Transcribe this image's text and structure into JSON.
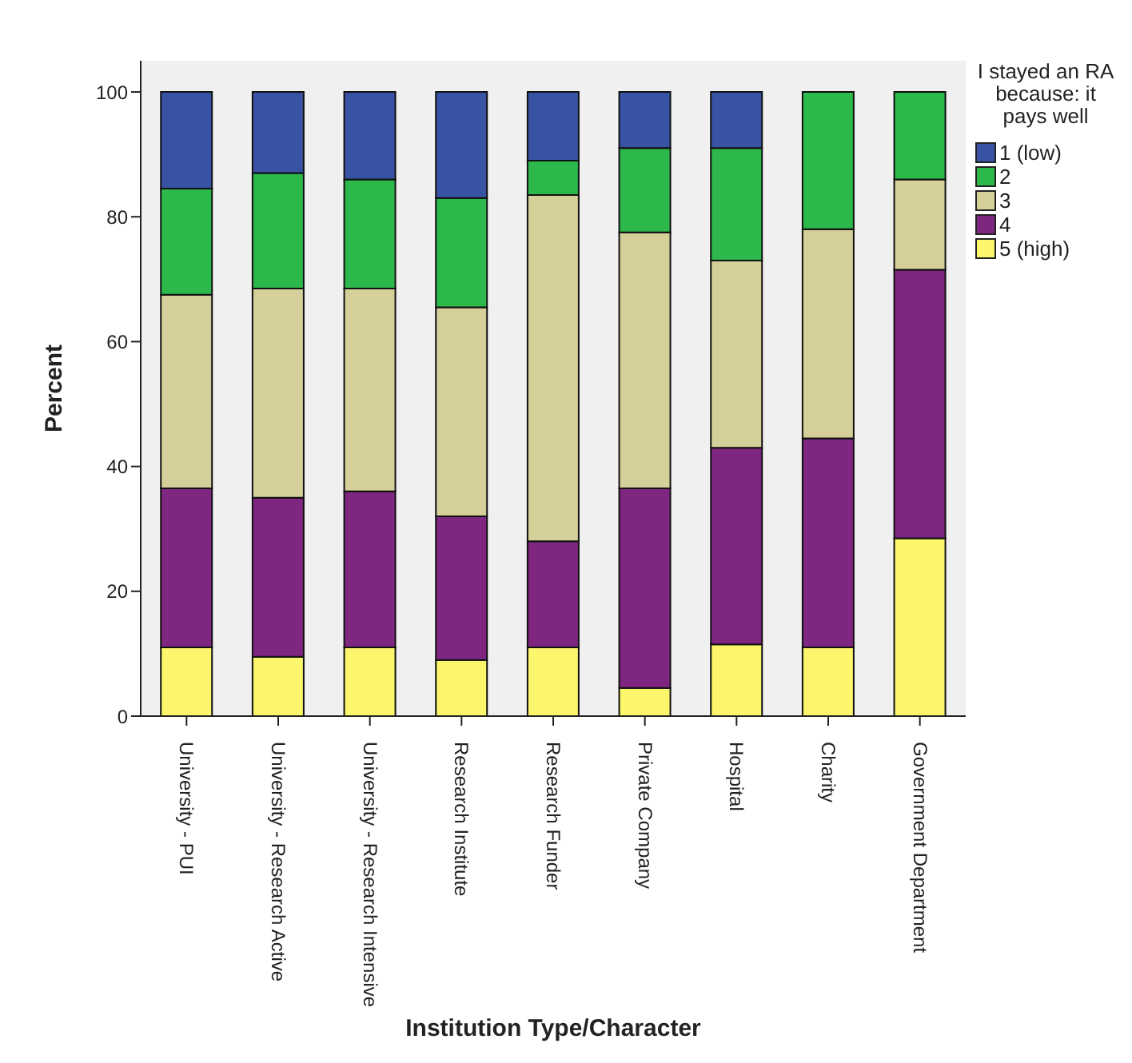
{
  "chart_data": {
    "type": "bar",
    "stacked": true,
    "xlabel": "Institution Type/Character",
    "ylabel": "Percent",
    "legend_title": "I stayed an RA because: it pays well",
    "legend": "right",
    "grid": false,
    "categories": [
      "University - PUI",
      "University - Research Active",
      "University - Research Intensive",
      "Research Institute",
      "Research Funder",
      "Private Company",
      "Hospital",
      "Charity",
      "Government Department"
    ],
    "ylim": [
      0,
      105
    ],
    "yticks": [
      0,
      20,
      40,
      60,
      80,
      100
    ],
    "series": [
      {
        "name": "5 (high)",
        "color": "#fbf66b",
        "values": [
          11,
          9.5,
          11,
          9,
          11,
          4.5,
          11.5,
          11,
          28.5
        ]
      },
      {
        "name": "4",
        "color": "#7f2780",
        "values": [
          25.5,
          25.5,
          25,
          23,
          17,
          32,
          31.5,
          33.5,
          43
        ]
      },
      {
        "name": "3",
        "color": "#d5cf9a",
        "values": [
          31,
          33.5,
          32.5,
          33.5,
          55.5,
          41,
          30,
          33.5,
          14.5
        ]
      },
      {
        "name": "2",
        "color": "#2db84b",
        "values": [
          17,
          18.5,
          17.5,
          17.5,
          5.5,
          13.5,
          18,
          22,
          14
        ]
      },
      {
        "name": "1 (low)",
        "color": "#3953a4",
        "values": [
          15.5,
          13,
          14,
          17,
          11,
          9,
          9,
          0,
          0
        ]
      }
    ]
  }
}
